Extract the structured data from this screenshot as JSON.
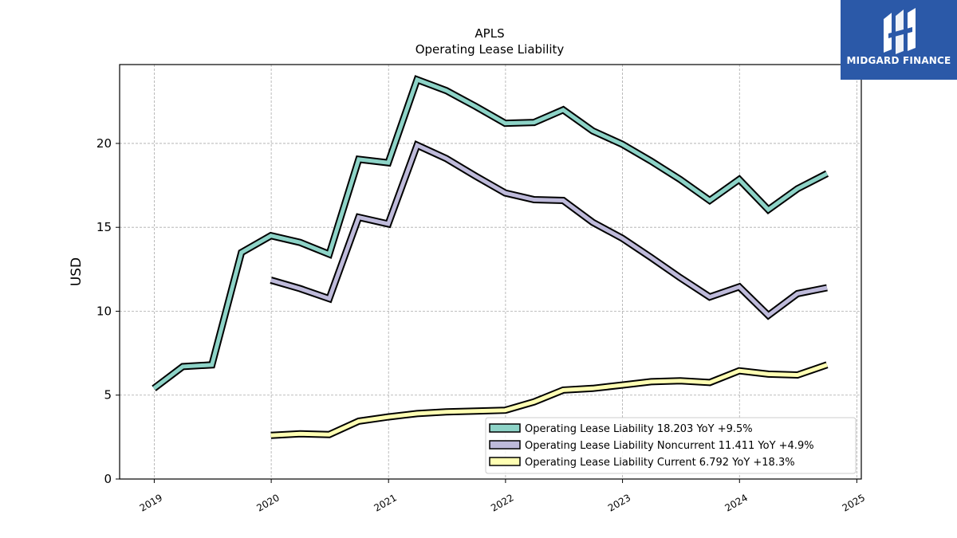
{
  "brand": {
    "name": "MIDGARD FINANCE",
    "background": "#2b59a8"
  },
  "chart_data": {
    "type": "line",
    "title": "APLS",
    "subtitle": "Operating Lease Liability",
    "xlabel": "",
    "ylabel": "USD",
    "xlim": [
      "2018-09-15",
      "2025-01-15"
    ],
    "ylim": [
      0,
      24.7
    ],
    "x_ticks": [
      "2019",
      "2020",
      "2021",
      "2022",
      "2023",
      "2024",
      "2025"
    ],
    "y_ticks": [
      "0",
      "5",
      "10",
      "15",
      "20"
    ],
    "grid": true,
    "legend_position": "lower-right",
    "series": [
      {
        "name": "Operating Lease Liability  18.203 YoY +9.5%",
        "color": "#8dd3c7",
        "points": [
          [
            "2018-12-31",
            5.4
          ],
          [
            "2019-03-31",
            6.7
          ],
          [
            "2019-06-30",
            6.8
          ],
          [
            "2019-09-30",
            13.5
          ],
          [
            "2019-12-31",
            14.5
          ],
          [
            "2020-03-31",
            14.1
          ],
          [
            "2020-06-30",
            13.4
          ],
          [
            "2020-09-30",
            19.05
          ],
          [
            "2020-12-31",
            18.85
          ],
          [
            "2021-03-31",
            23.8
          ],
          [
            "2021-06-30",
            23.15
          ],
          [
            "2021-09-30",
            22.2
          ],
          [
            "2021-12-31",
            21.2
          ],
          [
            "2022-03-31",
            21.25
          ],
          [
            "2022-06-30",
            22.0
          ],
          [
            "2022-09-30",
            20.75
          ],
          [
            "2022-12-31",
            19.95
          ],
          [
            "2023-03-31",
            18.95
          ],
          [
            "2023-06-30",
            17.85
          ],
          [
            "2023-09-30",
            16.6
          ],
          [
            "2023-12-31",
            17.85
          ],
          [
            "2024-03-31",
            16.05
          ],
          [
            "2024-06-30",
            17.3
          ],
          [
            "2024-09-30",
            18.2
          ]
        ]
      },
      {
        "name": "Operating Lease Liability Noncurrent  11.411 YoY +4.9%",
        "color": "#bebada",
        "points": [
          [
            "2019-12-31",
            11.85
          ],
          [
            "2020-03-31",
            11.35
          ],
          [
            "2020-06-30",
            10.75
          ],
          [
            "2020-09-30",
            15.6
          ],
          [
            "2020-12-31",
            15.2
          ],
          [
            "2021-03-31",
            19.9
          ],
          [
            "2021-06-30",
            19.1
          ],
          [
            "2021-09-30",
            18.05
          ],
          [
            "2021-12-31",
            17.05
          ],
          [
            "2022-03-31",
            16.65
          ],
          [
            "2022-06-30",
            16.6
          ],
          [
            "2022-09-30",
            15.3
          ],
          [
            "2022-12-31",
            14.35
          ],
          [
            "2023-03-31",
            13.2
          ],
          [
            "2023-06-30",
            12.0
          ],
          [
            "2023-09-30",
            10.85
          ],
          [
            "2023-12-31",
            11.45
          ],
          [
            "2024-03-31",
            9.75
          ],
          [
            "2024-06-30",
            11.05
          ],
          [
            "2024-09-30",
            11.4
          ]
        ]
      },
      {
        "name": "Operating Lease Liability Current  6.792 YoY +18.3%",
        "color": "#ffffb3",
        "points": [
          [
            "2019-12-31",
            2.6
          ],
          [
            "2020-03-31",
            2.7
          ],
          [
            "2020-06-30",
            2.65
          ],
          [
            "2020-09-30",
            3.45
          ],
          [
            "2020-12-31",
            3.7
          ],
          [
            "2021-03-31",
            3.9
          ],
          [
            "2021-06-30",
            4.0
          ],
          [
            "2021-09-30",
            4.05
          ],
          [
            "2021-12-31",
            4.1
          ],
          [
            "2022-03-31",
            4.6
          ],
          [
            "2022-06-30",
            5.3
          ],
          [
            "2022-09-30",
            5.4
          ],
          [
            "2022-12-31",
            5.6
          ],
          [
            "2023-03-31",
            5.8
          ],
          [
            "2023-06-30",
            5.85
          ],
          [
            "2023-09-30",
            5.75
          ],
          [
            "2023-12-31",
            6.45
          ],
          [
            "2024-03-31",
            6.25
          ],
          [
            "2024-06-30",
            6.2
          ],
          [
            "2024-09-30",
            6.8
          ]
        ]
      }
    ]
  }
}
